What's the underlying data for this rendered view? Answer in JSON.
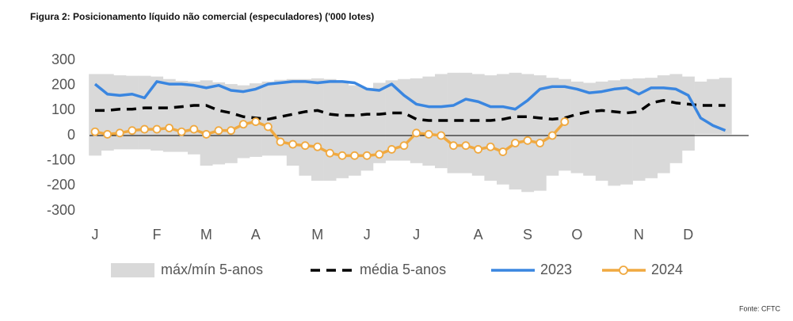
{
  "chart_data": {
    "type": "line",
    "title": "Figura 2: Posicionamento líquido não comercial (especuladores) ('000 lotes)",
    "source": "Fonte: CFTC",
    "categories": [
      "J",
      null,
      null,
      null,
      null,
      "F",
      null,
      null,
      null,
      "M",
      null,
      null,
      null,
      "A",
      null,
      null,
      null,
      null,
      "M",
      null,
      null,
      null,
      "J",
      null,
      null,
      null,
      "J",
      null,
      null,
      null,
      null,
      "A",
      null,
      null,
      null,
      "S",
      null,
      null,
      null,
      "O",
      null,
      null,
      null,
      null,
      "N",
      null,
      null,
      null,
      "D",
      null,
      null,
      null
    ],
    "ylim": [
      -300,
      300
    ],
    "yticks": [
      -300,
      -200,
      -100,
      0,
      100,
      200,
      300
    ],
    "band": {
      "name": "máx/mín 5-anos",
      "color": "#d9d9d9",
      "max": [
        245,
        245,
        240,
        238,
        238,
        235,
        225,
        218,
        215,
        220,
        212,
        205,
        200,
        208,
        215,
        222,
        225,
        225,
        228,
        225,
        215,
        200,
        190,
        210,
        220,
        225,
        228,
        235,
        245,
        250,
        250,
        245,
        240,
        245,
        250,
        245,
        240,
        230,
        225,
        215,
        210,
        215,
        220,
        225,
        228,
        230,
        240,
        245,
        235,
        215,
        225,
        230
      ],
      "min": [
        -80,
        -60,
        -55,
        -55,
        -55,
        -60,
        -65,
        -65,
        -75,
        -120,
        -115,
        -110,
        -90,
        -85,
        -80,
        -80,
        -120,
        -160,
        -180,
        -180,
        -170,
        -160,
        -140,
        -110,
        -100,
        -100,
        -110,
        -120,
        -130,
        -150,
        -150,
        -160,
        -180,
        -195,
        -215,
        -225,
        -220,
        -160,
        -140,
        -150,
        -160,
        -180,
        -200,
        -195,
        -180,
        -170,
        -150,
        -110,
        -60,
        5,
        5,
        5
      ]
    },
    "series": [
      {
        "name": "média 5-anos",
        "color": "#000000",
        "dash": true,
        "values": [
          100,
          100,
          105,
          105,
          110,
          110,
          110,
          115,
          120,
          120,
          100,
          90,
          75,
          70,
          65,
          75,
          85,
          95,
          100,
          85,
          80,
          80,
          85,
          85,
          90,
          90,
          65,
          60,
          60,
          60,
          60,
          60,
          60,
          65,
          75,
          75,
          70,
          65,
          70,
          85,
          95,
          100,
          95,
          90,
          95,
          130,
          140,
          130,
          125,
          120,
          120,
          120
        ]
      },
      {
        "name": "2023",
        "color": "#3a86e0",
        "values": [
          205,
          165,
          160,
          165,
          150,
          215,
          205,
          205,
          200,
          190,
          200,
          180,
          175,
          185,
          205,
          210,
          215,
          215,
          210,
          215,
          215,
          210,
          185,
          180,
          205,
          160,
          125,
          115,
          115,
          120,
          145,
          135,
          115,
          115,
          105,
          140,
          185,
          195,
          195,
          185,
          170,
          175,
          185,
          190,
          165,
          190,
          190,
          185,
          160,
          70,
          40,
          20
        ]
      },
      {
        "name": "2024",
        "color": "#f0a940",
        "markers": true,
        "values": [
          15,
          5,
          10,
          20,
          25,
          25,
          30,
          15,
          25,
          5,
          20,
          20,
          45,
          55,
          35,
          -25,
          -35,
          -40,
          -45,
          -70,
          -80,
          -80,
          -80,
          -75,
          -55,
          -40,
          10,
          5,
          0,
          -40,
          -40,
          -55,
          -45,
          -65,
          -30,
          -20,
          -30,
          0,
          55,
          null,
          null,
          null,
          null,
          null,
          null,
          null,
          null,
          null,
          null,
          null,
          null,
          null
        ]
      }
    ]
  }
}
